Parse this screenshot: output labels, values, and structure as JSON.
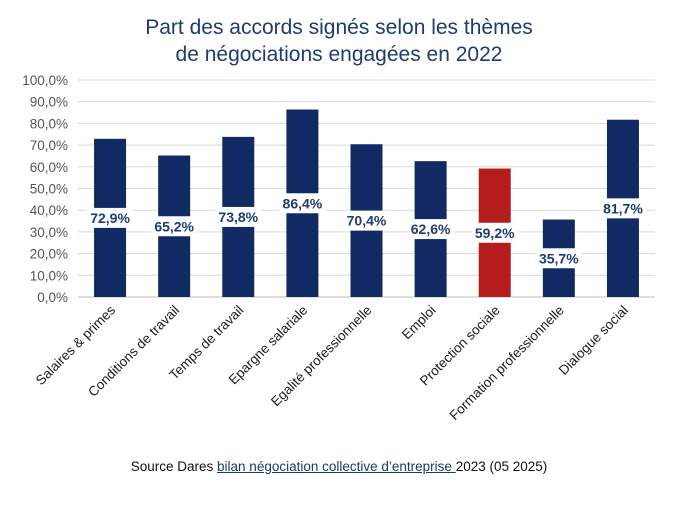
{
  "chart_data": {
    "type": "bar",
    "title_lines": [
      "Part des accords signés selon les thèmes",
      "de négociations engagées en 2022"
    ],
    "categories": [
      "Salaires & primes",
      "Conditions de travail",
      "Temps de travail",
      "Epargne salariale",
      "Egalité professionnelle",
      "Emploi",
      "Protection sociale",
      "Formation professionnelle",
      "Dialogue social"
    ],
    "values": [
      72.9,
      65.2,
      73.8,
      86.4,
      70.4,
      62.6,
      59.2,
      35.7,
      81.7
    ],
    "data_labels": [
      "72,9%",
      "65,2%",
      "73,8%",
      "86,4%",
      "70,4%",
      "62,6%",
      "59,2%",
      "35,7%",
      "81,7%"
    ],
    "ylim": [
      0,
      100
    ],
    "yticks": [
      "0,0%",
      "10,0%",
      "20,0%",
      "30,0%",
      "40,0%",
      "50,0%",
      "60,0%",
      "70,0%",
      "80,0%",
      "90,0%",
      "100,0%"
    ],
    "grid": true,
    "colors": {
      "default": "#122a63",
      "highlight": "#b51c1c",
      "highlight_index": 6
    }
  },
  "source": {
    "prefix": "Source Dares ",
    "link_text": "bilan négociation collective d’entreprise ",
    "suffix": "2023 (05 2025)"
  }
}
